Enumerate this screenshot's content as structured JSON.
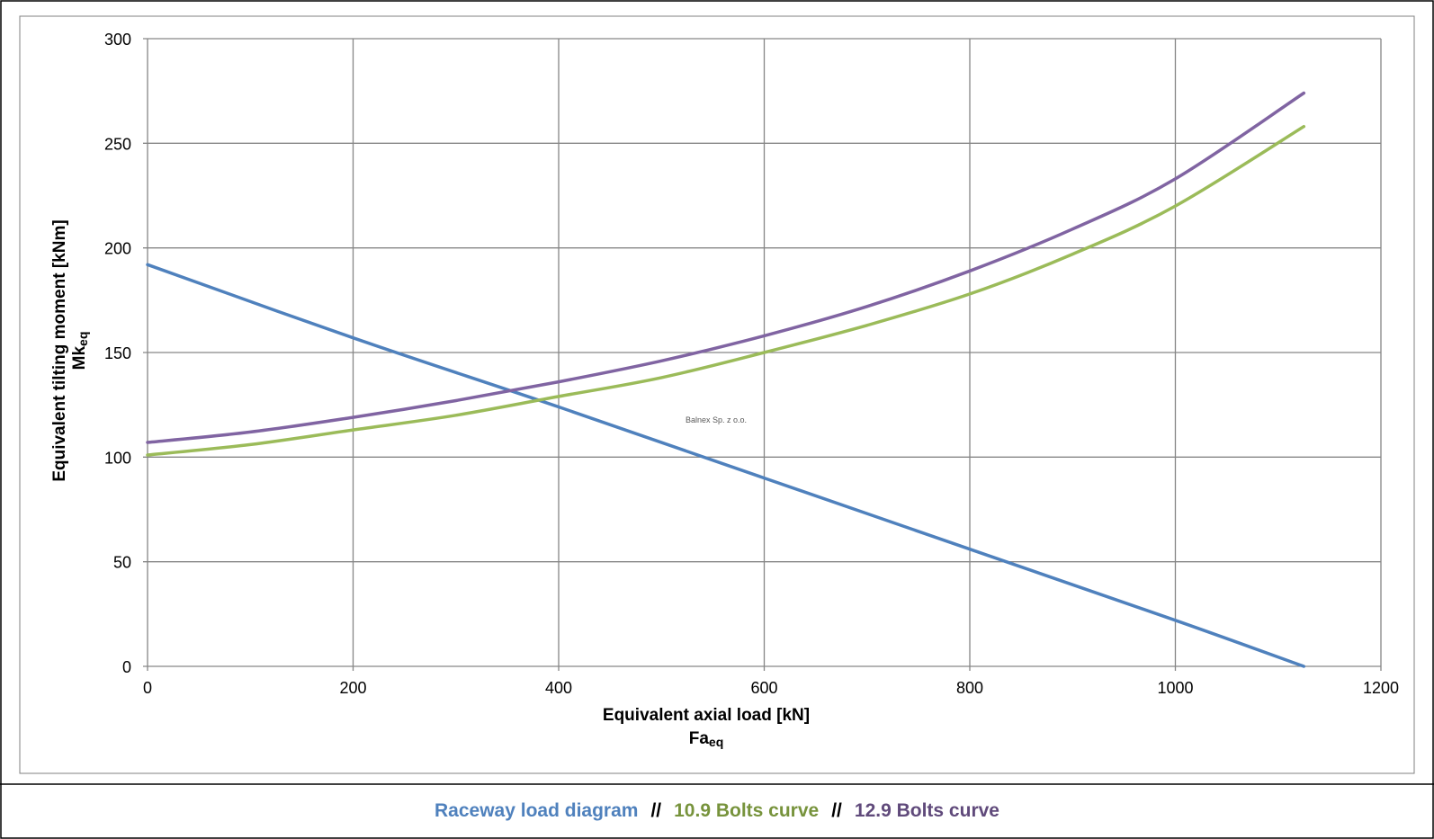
{
  "chart_data": {
    "type": "line",
    "xlim": [
      0,
      1200
    ],
    "ylim": [
      0,
      300
    ],
    "x_ticks": [
      "0",
      "200",
      "400",
      "600",
      "800",
      "1000",
      "1200"
    ],
    "y_ticks": [
      "0",
      "50",
      "100",
      "150",
      "200",
      "250",
      "300"
    ],
    "xlabel": "Equivalent axial load [kN]",
    "xlabel_symbol": "Fa",
    "xlabel_subscript": "eq",
    "ylabel": "Equivalent tilting moment [kNm]",
    "ylabel_symbol": "Mk",
    "ylabel_subscript": "eq",
    "grid": true,
    "annotation": "Balnex Sp. z o.o.",
    "series": [
      {
        "name": "Raceway load diagram",
        "color": "#4f81bd",
        "x": [
          0,
          200,
          400,
          600,
          800,
          1000,
          1125
        ],
        "y": [
          192,
          157,
          124,
          90,
          56,
          22,
          0
        ]
      },
      {
        "name": "10.9 Bolts curve",
        "color": "#9bbb59",
        "x": [
          0,
          100,
          200,
          300,
          400,
          500,
          600,
          700,
          800,
          900,
          1000,
          1125
        ],
        "y": [
          101,
          106,
          113,
          120,
          129,
          138,
          150,
          163,
          178,
          197,
          220,
          258
        ]
      },
      {
        "name": "12.9 Bolts curve",
        "color": "#8064a2",
        "x": [
          0,
          100,
          200,
          300,
          400,
          500,
          600,
          700,
          800,
          900,
          1000,
          1125
        ],
        "y": [
          107,
          112,
          119,
          127,
          136,
          146,
          158,
          172,
          189,
          209,
          233,
          274
        ]
      }
    ]
  },
  "legend": {
    "separator": "//",
    "items": [
      {
        "label": "Raceway load diagram",
        "color": "#4f81bd"
      },
      {
        "label": "10.9 Bolts curve",
        "color": "#77933c"
      },
      {
        "label": "12.9 Bolts curve",
        "color": "#604a7b"
      }
    ]
  }
}
